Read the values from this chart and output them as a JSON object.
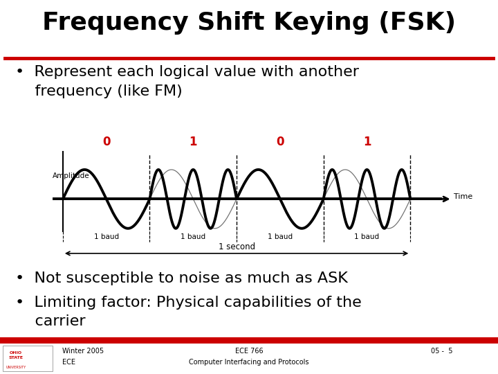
{
  "title": "Frequency Shift Keying (FSK)",
  "bullet1_line1": "•  Represent each logical value with another",
  "bullet1_line2": "    frequency (like FM)",
  "bullet2": "•  Not susceptible to noise as much as ASK",
  "bullet3_line1": "•  Limiting factor: Physical capabilities of the",
  "bullet3_line2": "    carrier",
  "title_color": "#000000",
  "title_fontsize": 26,
  "red_line_color": "#cc0000",
  "bullet_fontsize": 16,
  "bg_color": "#ffffff",
  "footer_left1": "Winter 2005",
  "footer_left2": "ECE",
  "footer_center1": "ECE 766",
  "footer_center2": "Computer Interfacing and Protocols",
  "footer_right": "05 -  5",
  "signal_labels": [
    "0",
    "1",
    "0",
    "1"
  ],
  "signal_label_color": "#cc0000",
  "baud_labels": [
    "1 baud",
    "1 baud",
    "1 baud",
    "1 baud"
  ],
  "second_label": "1 second",
  "amplitude_label": "Amplitude",
  "time_label": "Time",
  "low_freq": 1.0,
  "high_freq": 2.5,
  "baud_duration": 1.0,
  "num_bauds": 4,
  "pattern": [
    0,
    1,
    0,
    1
  ]
}
